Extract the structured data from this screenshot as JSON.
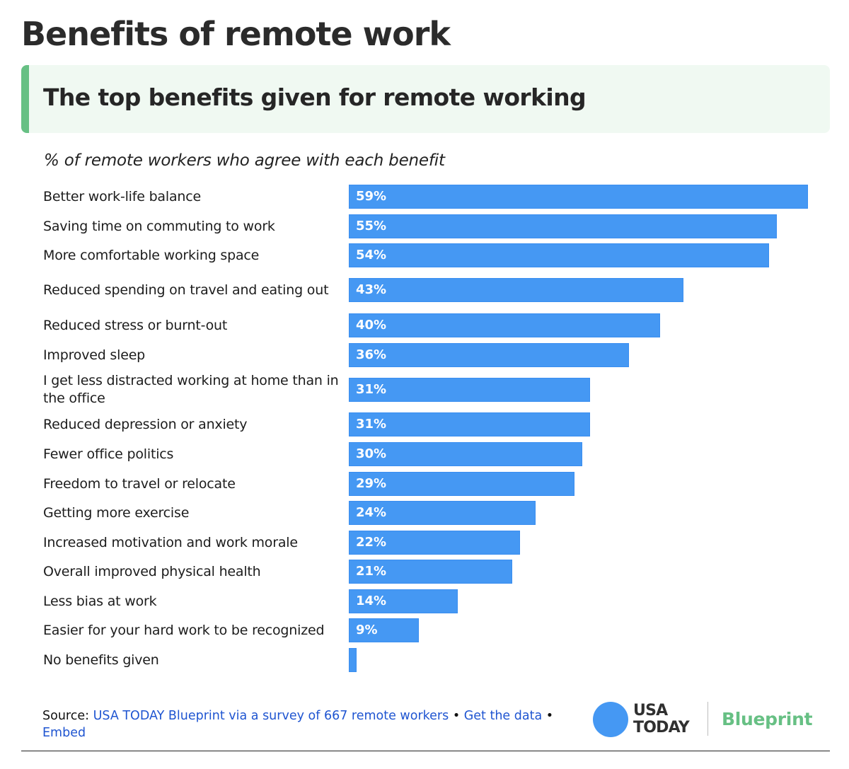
{
  "header": {
    "title": "Benefits of remote work",
    "subtitle": "The top benefits given for remote working",
    "caption": "% of remote workers who agree with each benefit"
  },
  "colors": {
    "bar": "#4598f3",
    "accent_green": "#67c084",
    "subtitle_bg": "#f0f9f2",
    "link": "#1f55d1"
  },
  "chart_data": {
    "type": "bar",
    "orientation": "horizontal",
    "title": "The top benefits given for remote working",
    "subtitle": "% of remote workers who agree with each benefit",
    "xlabel": "",
    "ylabel": "",
    "xlim": [
      0,
      59
    ],
    "grid": false,
    "legend": null,
    "categories": [
      "Better work-life balance",
      "Saving time on commuting to work",
      "More comfortable working space",
      "Reduced spending on travel and eating out",
      "Reduced stress or burnt-out",
      "Improved sleep",
      "I get less distracted working at home than in the office",
      "Reduced depression or anxiety",
      "Fewer office politics",
      "Freedom to travel or relocate",
      "Getting more exercise",
      "Increased motivation and work morale",
      "Overall improved physical health",
      "Less bias at work",
      "Easier for your hard work to be recognized",
      "No benefits given"
    ],
    "values": [
      59,
      55,
      54,
      43,
      40,
      36,
      31,
      31,
      30,
      29,
      24,
      22,
      21,
      14,
      9,
      1
    ],
    "value_labels": [
      "59%",
      "55%",
      "54%",
      "43%",
      "40%",
      "36%",
      "31%",
      "31%",
      "30%",
      "29%",
      "24%",
      "22%",
      "21%",
      "14%",
      "9%",
      ""
    ]
  },
  "rows": [
    {
      "label": "Better work-life balance",
      "value": 59,
      "display": "59%"
    },
    {
      "label": "Saving time on commuting to work",
      "value": 55,
      "display": "55%"
    },
    {
      "label": "More comfortable working space",
      "value": 54,
      "display": "54%"
    },
    {
      "label": "Reduced spending on travel and eating out",
      "value": 43,
      "display": "43%"
    },
    {
      "label": "Reduced stress or burnt-out",
      "value": 40,
      "display": "40%"
    },
    {
      "label": "Improved sleep",
      "value": 36,
      "display": "36%"
    },
    {
      "label": "I get less distracted working at home than in the office",
      "value": 31,
      "display": "31%"
    },
    {
      "label": "Reduced depression or anxiety",
      "value": 31,
      "display": "31%"
    },
    {
      "label": "Fewer office politics",
      "value": 30,
      "display": "30%"
    },
    {
      "label": "Freedom to travel or relocate",
      "value": 29,
      "display": "29%"
    },
    {
      "label": "Getting more exercise",
      "value": 24,
      "display": "24%"
    },
    {
      "label": "Increased motivation and work morale",
      "value": 22,
      "display": "22%"
    },
    {
      "label": "Overall improved physical health",
      "value": 21,
      "display": "21%"
    },
    {
      "label": "Less bias at work",
      "value": 14,
      "display": "14%"
    },
    {
      "label": "Easier for your hard work to be recognized",
      "value": 9,
      "display": "9%"
    },
    {
      "label": "No benefits given",
      "value": 1,
      "display": ""
    }
  ],
  "footer": {
    "source_prefix": "Source:",
    "source_link": "USA TODAY Blueprint via a survey of 667 remote workers",
    "separator": "•",
    "get_data_link": "Get the data",
    "embed_link": "Embed"
  },
  "logo": {
    "usa_line1": "USA",
    "usa_line2": "TODAY",
    "blueprint": "Blueprint"
  }
}
